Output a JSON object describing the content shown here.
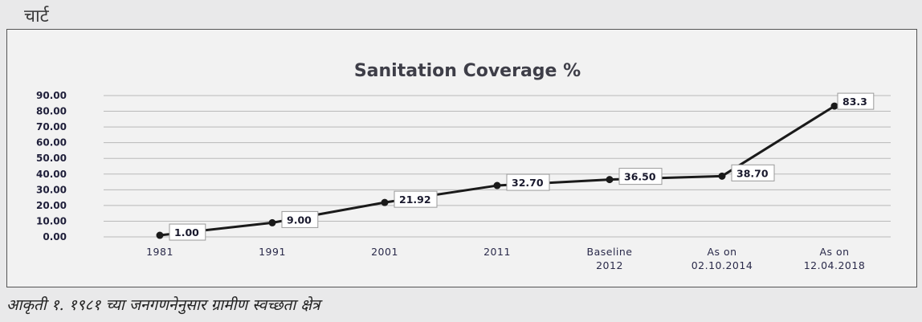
{
  "page": {
    "heading": "चार्ट",
    "caption": "आकृती १. १९८१ च्या जनगणनेनुसार ग्रामीण स्वच्छता क्षेत्र"
  },
  "chart_data": {
    "type": "line",
    "title": "Sanitation Coverage %",
    "categories": [
      "1981",
      "1991",
      "2001",
      "2011",
      "Baseline 2012",
      "As on 02.10.2014",
      "As on 12.04.2018"
    ],
    "category_lines": [
      [
        "1981"
      ],
      [
        "1991"
      ],
      [
        "2001"
      ],
      [
        "2011"
      ],
      [
        "Baseline",
        "2012"
      ],
      [
        "As on",
        "02.10.2014"
      ],
      [
        "As on",
        "12.04.2018"
      ]
    ],
    "values": [
      1.0,
      9.0,
      21.92,
      32.7,
      36.5,
      38.7,
      83.3
    ],
    "data_labels": [
      "1.00",
      "9.00",
      "21.92",
      "32.70",
      "36.50",
      "38.70",
      "83.3"
    ],
    "y_ticks": [
      "0.00",
      "10.00",
      "20.00",
      "30.00",
      "40.00",
      "50.00",
      "60.00",
      "70.00",
      "80.00",
      "90.00"
    ],
    "ylim": [
      0,
      90
    ],
    "grid": true,
    "colors": {
      "line": "#1a1a1a",
      "grid": "#b9b9b9",
      "label_box": "#ffffff"
    }
  }
}
